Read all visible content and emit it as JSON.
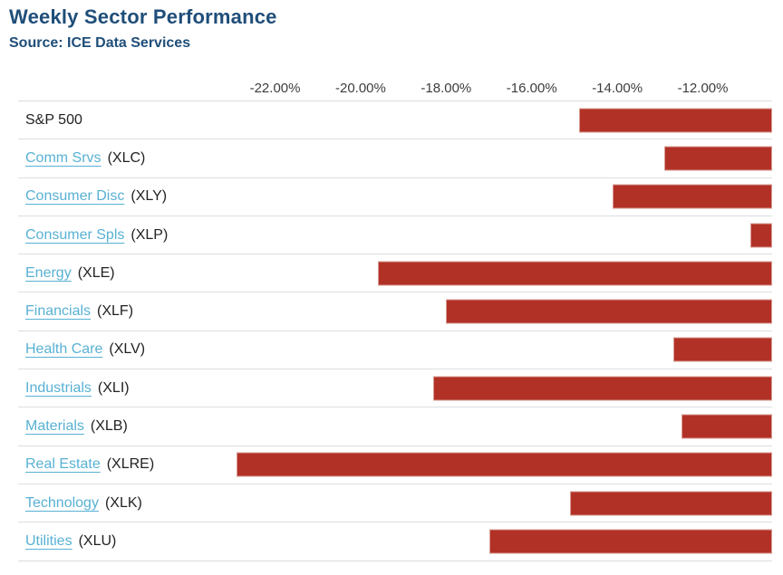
{
  "chart_data": {
    "type": "bar",
    "orientation": "horizontal",
    "title": "Weekly Sector Performance",
    "source": "Source: ICE Data Services",
    "x_axis": {
      "tick_labels": [
        "-22.00%",
        "-20.00%",
        "-18.00%",
        "-16.00%",
        "-14.00%",
        "-12.00%"
      ],
      "tick_values": [
        -22,
        -20,
        -18,
        -16,
        -14,
        -12
      ],
      "range": [
        -23.6,
        -10.38
      ],
      "unit": "%"
    },
    "rows": [
      {
        "label": "S&P 500",
        "ticker": "",
        "linked": false,
        "value": -14.9
      },
      {
        "label": "Comm Srvs",
        "ticker": "(XLC)",
        "linked": true,
        "value": -12.9
      },
      {
        "label": "Consumer Disc",
        "ticker": "(XLY)",
        "linked": true,
        "value": -14.1
      },
      {
        "label": "Consumer Spls",
        "ticker": "(XLP)",
        "linked": true,
        "value": -10.9
      },
      {
        "label": "Energy",
        "ticker": "(XLE)",
        "linked": true,
        "value": -19.6
      },
      {
        "label": "Financials",
        "ticker": "(XLF)",
        "linked": true,
        "value": -18.0
      },
      {
        "label": "Health Care",
        "ticker": "(XLV)",
        "linked": true,
        "value": -12.7
      },
      {
        "label": "Industrials",
        "ticker": "(XLI)",
        "linked": true,
        "value": -18.3
      },
      {
        "label": "Materials",
        "ticker": "(XLB)",
        "linked": true,
        "value": -12.5
      },
      {
        "label": "Real Estate",
        "ticker": "(XLRE)",
        "linked": true,
        "value": -22.9
      },
      {
        "label": "Technology",
        "ticker": "(XLK)",
        "linked": true,
        "value": -15.1
      },
      {
        "label": "Utilities",
        "ticker": "(XLU)",
        "linked": true,
        "value": -17.0
      }
    ]
  },
  "colors": {
    "bar": "#b23127",
    "bar_border": "#d79c93",
    "link": "#58b1d4",
    "title": "#1f4e79",
    "separator": "#dadde0",
    "axis_text": "#3d3d3d",
    "label_text": "#222222"
  }
}
